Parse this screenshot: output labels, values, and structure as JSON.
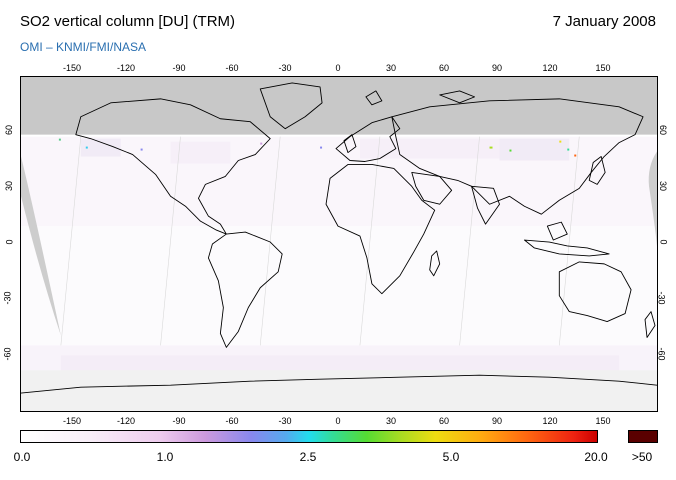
{
  "title": "SO2 vertical column [DU] (TRM)",
  "date": "7 January 2008",
  "credit": "OMI  –  KNMI/FMI/NASA",
  "lon_ticks": [
    "-150",
    "-120",
    "-90",
    "-60",
    "-30",
    "0",
    "30",
    "60",
    "90",
    "120",
    "150"
  ],
  "lat_ticks": [
    "60",
    "30",
    "0",
    "-30",
    "-60"
  ],
  "colorbar": {
    "labels": [
      "0.0",
      "1.0",
      "2.5",
      "5.0",
      "20.0"
    ],
    "over_label": ">50",
    "over_color": "#5a0000"
  },
  "colors": {
    "ocean": "#ffffff",
    "polar_night": "#c8c8c8",
    "coast": "#000000",
    "credit_blue": "#2a6fb0"
  }
}
